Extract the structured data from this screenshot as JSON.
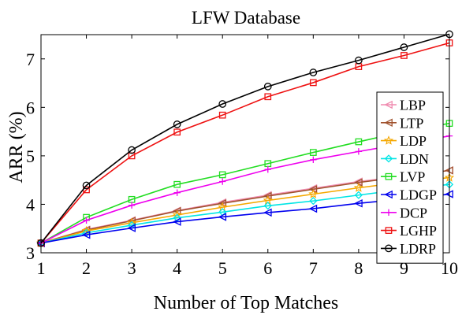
{
  "chart_data": {
    "type": "line",
    "title": "LFW Database",
    "xlabel": "Number of Top Matches",
    "ylabel": "ARR (%)",
    "x": [
      1,
      2,
      3,
      4,
      5,
      6,
      7,
      8,
      9,
      10
    ],
    "xlim": [
      1,
      10
    ],
    "ylim": [
      3,
      7.5
    ],
    "x_ticks": [
      "1",
      "2",
      "3",
      "4",
      "5",
      "6",
      "7",
      "8",
      "9",
      "10"
    ],
    "y_ticks": [
      "3",
      "4",
      "5",
      "6",
      "7"
    ],
    "grid": false,
    "legend_position": "right",
    "series": [
      {
        "name": "LBP",
        "color": "#f08cb0",
        "marker": "triangle-left",
        "values": [
          3.2,
          3.48,
          3.67,
          3.87,
          4.04,
          4.19,
          4.33,
          4.47,
          4.58,
          4.7
        ]
      },
      {
        "name": "LTP",
        "color": "#a0522d",
        "marker": "triangle-left",
        "values": [
          3.2,
          3.47,
          3.66,
          3.86,
          4.02,
          4.17,
          4.31,
          4.45,
          4.57,
          4.7
        ]
      },
      {
        "name": "LDP",
        "color": "#f5a800",
        "marker": "star",
        "values": [
          3.2,
          3.45,
          3.62,
          3.78,
          3.94,
          4.08,
          4.21,
          4.34,
          4.46,
          4.55
        ]
      },
      {
        "name": "LDN",
        "color": "#00e5e5",
        "marker": "diamond",
        "values": [
          3.2,
          3.41,
          3.57,
          3.72,
          3.84,
          3.97,
          4.07,
          4.19,
          4.31,
          4.41
        ]
      },
      {
        "name": "LVP",
        "color": "#22dd22",
        "marker": "square",
        "values": [
          3.2,
          3.73,
          4.1,
          4.41,
          4.61,
          4.84,
          5.07,
          5.29,
          5.5,
          5.67
        ]
      },
      {
        "name": "LDGP",
        "color": "#0000ee",
        "marker": "triangle-left",
        "values": [
          3.2,
          3.37,
          3.51,
          3.64,
          3.74,
          3.83,
          3.91,
          4.02,
          4.11,
          4.21
        ]
      },
      {
        "name": "DCP",
        "color": "#ee00ee",
        "marker": "plus",
        "values": [
          3.2,
          3.67,
          3.98,
          4.24,
          4.47,
          4.72,
          4.92,
          5.09,
          5.25,
          5.41
        ]
      },
      {
        "name": "LGHP",
        "color": "#ee1111",
        "marker": "square",
        "values": [
          3.2,
          4.3,
          5.0,
          5.49,
          5.84,
          6.22,
          6.51,
          6.84,
          7.07,
          7.33
        ]
      },
      {
        "name": "LDRP",
        "color": "#000000",
        "marker": "circle",
        "values": [
          3.2,
          4.39,
          5.12,
          5.65,
          6.07,
          6.43,
          6.72,
          6.97,
          7.24,
          7.51
        ]
      }
    ]
  }
}
